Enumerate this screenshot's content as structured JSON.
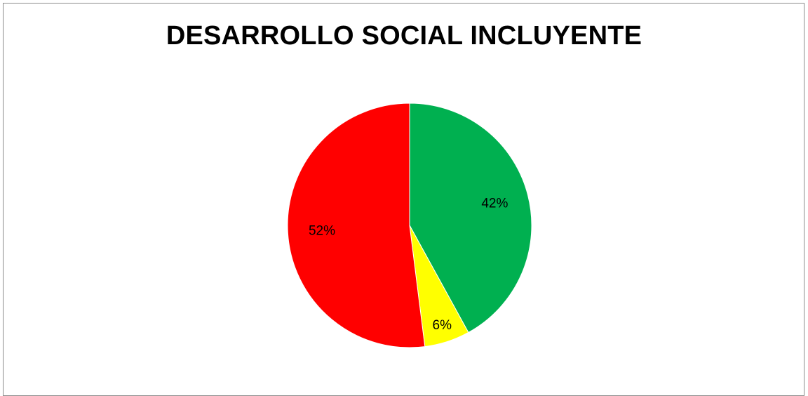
{
  "chart_data": {
    "type": "pie",
    "title": "DESARROLLO SOCIAL INCLUYENTE",
    "slices": [
      {
        "value": 42,
        "label": "42%",
        "color": "#00b050"
      },
      {
        "value": 6,
        "label": "6%",
        "color": "#ffff00"
      },
      {
        "value": 52,
        "label": "52%",
        "color": "#ff0000"
      }
    ],
    "legend": "none"
  }
}
